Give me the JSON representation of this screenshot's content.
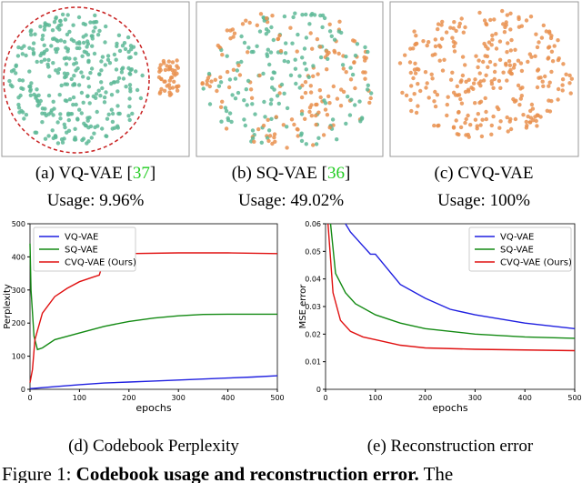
{
  "panels": [
    {
      "caption": {
        "prefix": "(a) VQ-VAE [",
        "ref": "37",
        "suffix": "]"
      },
      "usage": "Usage: 9.96%"
    },
    {
      "caption": {
        "prefix": "(b) SQ-VAE [",
        "ref": "36",
        "suffix": "]"
      },
      "usage": "Usage: 49.02%"
    },
    {
      "caption": {
        "prefix": "(c) CVQ-VAE",
        "ref": "",
        "suffix": ""
      },
      "usage": "Usage: 100%"
    }
  ],
  "chart_data": [
    {
      "type": "line",
      "caption": "(d) Codebook Perplexity",
      "x_label": "epochs",
      "y_label": "Perplexity",
      "xlim": [
        0,
        500
      ],
      "xticks": [
        0,
        100,
        200,
        300,
        400,
        500
      ],
      "ylim": [
        0,
        500
      ],
      "yticks": [
        0,
        100,
        200,
        300,
        400,
        500
      ],
      "legend": "upper left",
      "series": [
        {
          "name": "VQ-VAE",
          "color": "#1f1fe0",
          "x": [
            0,
            50,
            100,
            150,
            200,
            250,
            300,
            350,
            400,
            450,
            500
          ],
          "values": [
            2,
            8,
            14,
            19,
            22,
            25,
            28,
            31,
            34,
            37,
            41
          ]
        },
        {
          "name": "SQ-VAE",
          "color": "#138a13",
          "x": [
            0,
            2,
            8,
            15,
            25,
            50,
            100,
            150,
            200,
            250,
            300,
            350,
            400,
            450,
            500
          ],
          "values": [
            440,
            300,
            160,
            120,
            125,
            150,
            170,
            190,
            205,
            215,
            222,
            226,
            227,
            227,
            227
          ]
        },
        {
          "name": "CVQ-VAE (Ours)",
          "color": "#e01010",
          "x": [
            0,
            5,
            10,
            25,
            50,
            75,
            100,
            130,
            140,
            150,
            200,
            300,
            400,
            500
          ],
          "values": [
            20,
            60,
            150,
            230,
            280,
            305,
            325,
            340,
            345,
            395,
            410,
            412,
            412,
            410
          ]
        }
      ]
    },
    {
      "type": "line",
      "caption": "(e) Reconstruction error",
      "x_label": "epochs",
      "y_label": "MSE error",
      "xlim": [
        0,
        500
      ],
      "xticks": [
        0,
        100,
        200,
        300,
        400,
        500
      ],
      "ylim": [
        0,
        0.06
      ],
      "yticks": [
        0,
        0.01,
        0.02,
        0.03,
        0.04,
        0.05,
        0.06
      ],
      "legend": "upper right",
      "series": [
        {
          "name": "VQ-VAE",
          "color": "#1f1fe0",
          "x": [
            40,
            50,
            75,
            90,
            100,
            150,
            200,
            250,
            300,
            400,
            500
          ],
          "values": [
            0.06,
            0.057,
            0.052,
            0.049,
            0.049,
            0.038,
            0.033,
            0.029,
            0.027,
            0.024,
            0.022
          ]
        },
        {
          "name": "SQ-VAE",
          "color": "#138a13",
          "x": [
            10,
            20,
            40,
            60,
            100,
            150,
            200,
            300,
            400,
            500
          ],
          "values": [
            0.06,
            0.042,
            0.035,
            0.031,
            0.027,
            0.024,
            0.022,
            0.02,
            0.019,
            0.0185
          ]
        },
        {
          "name": "CVQ-VAE (Ours)",
          "color": "#e01010",
          "x": [
            5,
            15,
            30,
            50,
            75,
            100,
            150,
            200,
            300,
            500
          ],
          "values": [
            0.06,
            0.035,
            0.025,
            0.021,
            0.019,
            0.018,
            0.016,
            0.015,
            0.0145,
            0.014
          ]
        }
      ]
    }
  ],
  "figure_caption": {
    "label": "Figure 1: ",
    "bold": "Codebook usage and reconstruction error.",
    "rest": " The"
  }
}
